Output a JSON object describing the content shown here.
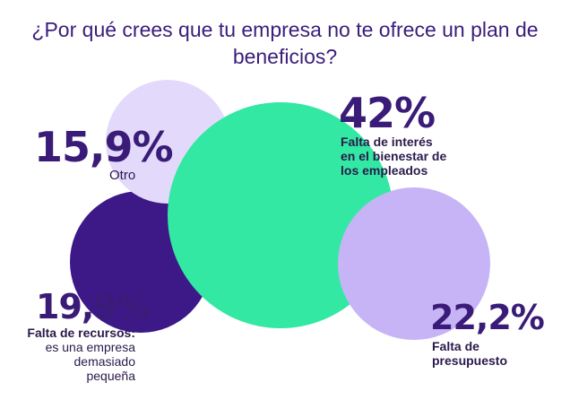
{
  "chart_data": {
    "type": "bubble",
    "title": "¿Por qué crees que tu empresa no te ofrece un plan de beneficios?",
    "slices": [
      {
        "key": "otro",
        "value": 15.9,
        "value_label": "15,9%",
        "label_lines": [
          "Otro"
        ],
        "color": "#e3dafb"
      },
      {
        "key": "interes",
        "value": 42,
        "value_label": "42%",
        "label_lines": [
          "Falta de interés",
          "en el bienestar de",
          "los empleados"
        ],
        "color": "#33e8a3"
      },
      {
        "key": "recursos",
        "value": 19.9,
        "value_label": "19,9%",
        "label_lines": [
          "Falta de recursos:",
          "es una empresa",
          "demasiado",
          "pequeña"
        ],
        "color": "#3d1887"
      },
      {
        "key": "presupuesto",
        "value": 22.2,
        "value_label": "22,2%",
        "label_lines": [
          "Falta de",
          "presupuesto"
        ],
        "color": "#c6b4f6"
      }
    ]
  }
}
